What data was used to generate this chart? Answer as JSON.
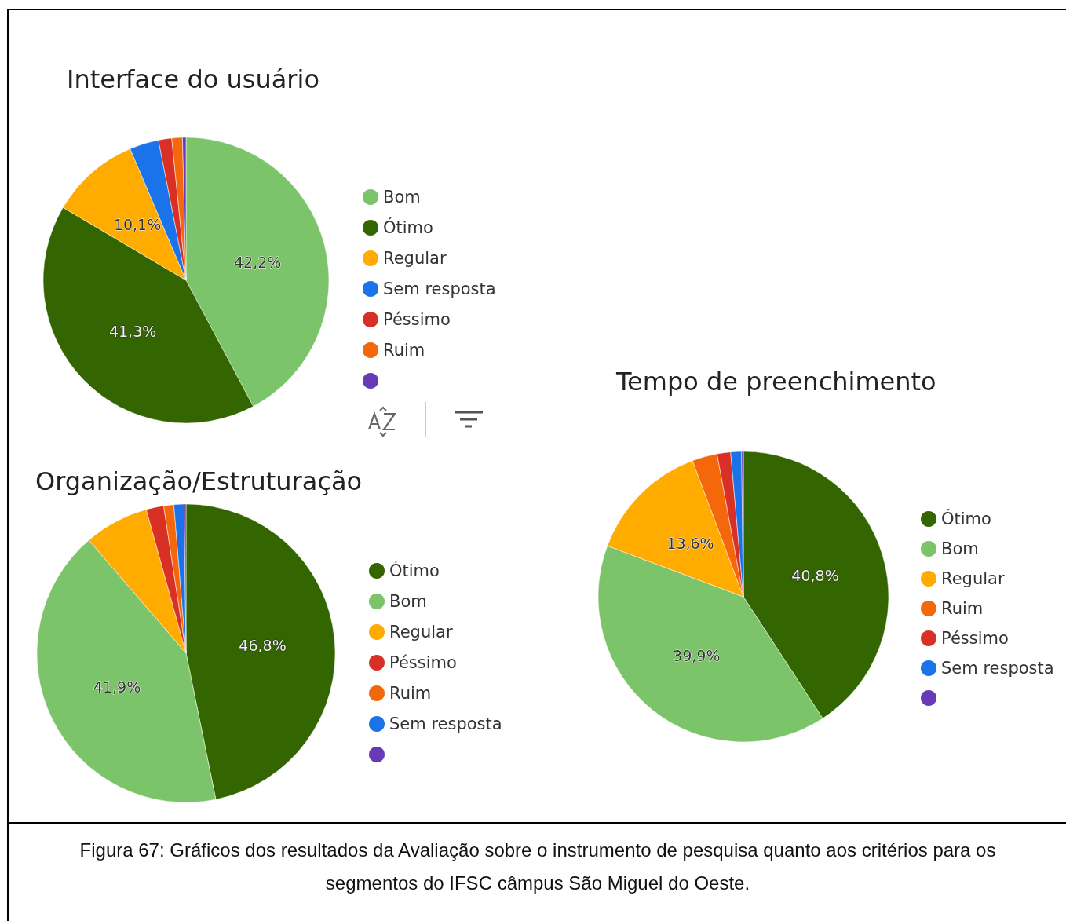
{
  "chart_data": [
    {
      "type": "pie",
      "title": "Interface do usuário",
      "categories": [
        "Bom",
        "Ótimo",
        "Regular",
        "Sem resposta",
        "Péssimo",
        "Ruim",
        null
      ],
      "values": [
        42.2,
        41.3,
        10.1,
        3.3,
        1.5,
        1.2,
        0.4
      ],
      "colors": [
        "#7cc46a",
        "#336600",
        "#ffab00",
        "#1a73e8",
        "#d93025",
        "#f4680b",
        "#673ab7"
      ],
      "value_labels": [
        "42,2%",
        "41,3%",
        "10,1%",
        null,
        null,
        null,
        null
      ],
      "legend": "right",
      "annotations": [
        "Figura 67: Gráficos dos resultados da Avaliação sobre o instrumento de pesquisa quanto aos critérios para os segmentos do IFSC câmpus São Miguel do Oeste."
      ]
    },
    {
      "type": "pie",
      "title": "Organização/Estruturação",
      "categories": [
        "Ótimo",
        "Bom",
        "Regular",
        "Péssimo",
        "Ruim",
        "Sem resposta",
        null
      ],
      "values": [
        46.8,
        41.9,
        7.0,
        1.9,
        1.1,
        1.1,
        0.2
      ],
      "colors": [
        "#336600",
        "#7cc46a",
        "#ffab00",
        "#d93025",
        "#f4680b",
        "#1a73e8",
        "#673ab7"
      ],
      "value_labels": [
        "46,8%",
        "41,9%",
        null,
        null,
        null,
        null,
        null
      ],
      "legend": "right"
    },
    {
      "type": "pie",
      "title": "Tempo de preenchimento",
      "categories": [
        "Ótimo",
        "Bom",
        "Regular",
        "Ruim",
        "Péssimo",
        "Sem resposta",
        null
      ],
      "values": [
        40.8,
        39.9,
        13.6,
        2.8,
        1.5,
        1.2,
        0.2
      ],
      "colors": [
        "#336600",
        "#7cc46a",
        "#ffab00",
        "#f4680b",
        "#d93025",
        "#1a73e8",
        "#673ab7"
      ],
      "value_labels": [
        "40,8%",
        "39,9%",
        "13,6%",
        null,
        null,
        null,
        null
      ],
      "legend": "right"
    }
  ]
}
